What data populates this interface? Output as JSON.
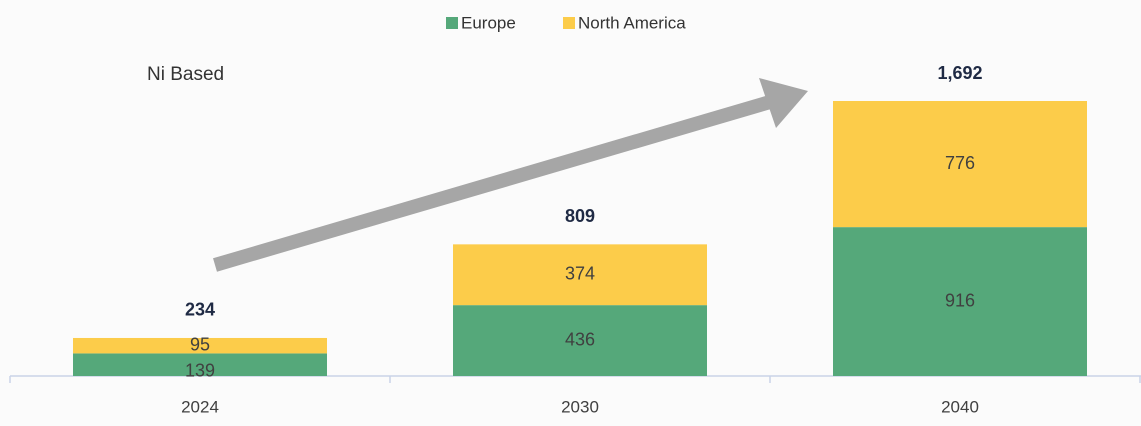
{
  "chart_data": {
    "type": "stacked_bar",
    "annotation": "Ni Based",
    "categories": [
      "2024",
      "2030",
      "2040"
    ],
    "series": [
      {
        "name": "Europe",
        "color": "#55a87a",
        "values": [
          139,
          436,
          916
        ]
      },
      {
        "name": "North America",
        "color": "#fccc4a",
        "values": [
          95,
          374,
          776
        ]
      }
    ],
    "totals": {
      "values": [
        234,
        809,
        1692
      ],
      "value_labels": [
        "234",
        "809",
        "1,692"
      ]
    }
  }
}
